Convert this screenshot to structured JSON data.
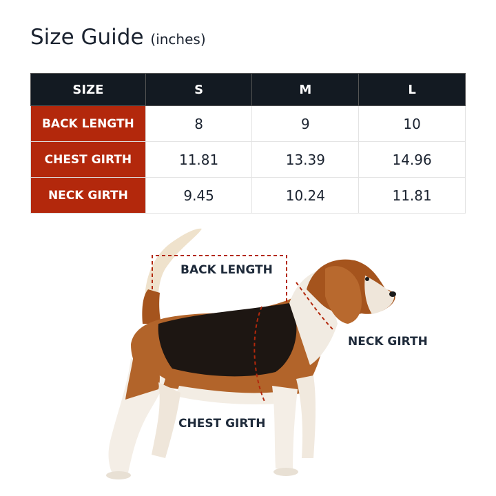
{
  "title": "Size Guide",
  "unit": "(inches)",
  "colors": {
    "header": "#131a22",
    "row_header": "#b3280c",
    "dashed_line": "#b3280c"
  },
  "table": {
    "headers": [
      "SIZE",
      "S",
      "M",
      "L"
    ],
    "rows": [
      {
        "label": "BACK LENGTH",
        "values": [
          "8",
          "9",
          "10"
        ]
      },
      {
        "label": "CHEST GIRTH",
        "values": [
          "11.81",
          "13.39",
          "14.96"
        ]
      },
      {
        "label": "NECK GIRTH",
        "values": [
          "9.45",
          "10.24",
          "11.81"
        ]
      }
    ]
  },
  "diagram": {
    "image": "beagle-dog-photo",
    "labels": {
      "back": "BACK LENGTH",
      "neck": "NECK GIRTH",
      "chest": "CHEST GIRTH"
    }
  }
}
